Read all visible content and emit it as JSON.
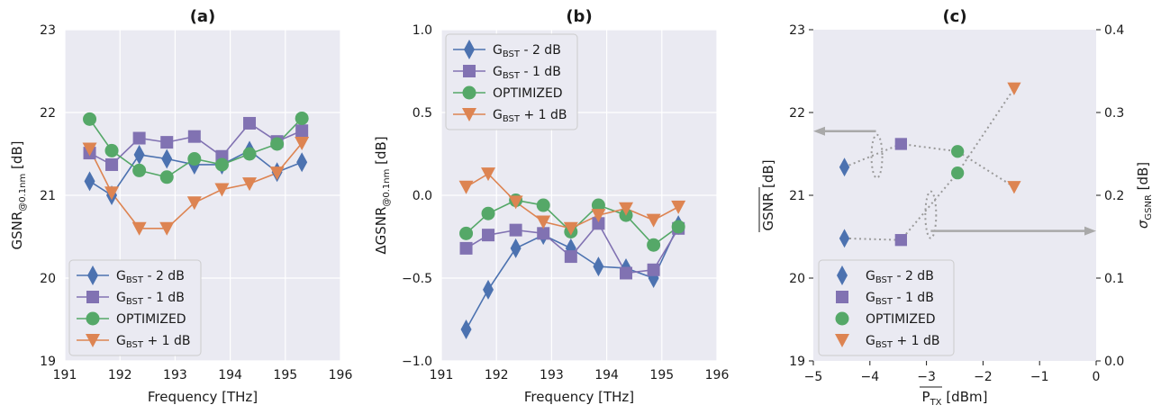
{
  "colors": {
    "gbst_minus2": "#4c72b0",
    "gbst_minus1": "#8172b2",
    "optimized": "#55a868",
    "gbst_plus1": "#dd8452",
    "panel_bg": "#eaeaf2",
    "grid": "#ffffff",
    "arrow": "#a9a9a9"
  },
  "legend": [
    {
      "key": "gbst_minus2",
      "marker": "diamond",
      "label_main": "G",
      "label_sub": "BST",
      "label_tail": " - 2 dB"
    },
    {
      "key": "gbst_minus1",
      "marker": "square",
      "label_main": "G",
      "label_sub": "BST",
      "label_tail": " - 1 dB"
    },
    {
      "key": "optimized",
      "marker": "circle",
      "label_main": "OPTIMIZED",
      "label_sub": "",
      "label_tail": ""
    },
    {
      "key": "gbst_plus1",
      "marker": "triangle-down",
      "label_main": "G",
      "label_sub": "BST",
      "label_tail": " + 1 dB"
    }
  ],
  "chart_data": [
    {
      "type": "line",
      "title": "(a)",
      "xlabel": "Frequency [THz]",
      "ylabel_main": "GSNR",
      "ylabel_sub": "@0.1nm",
      "ylabel_tail": " [dB]",
      "xlim": [
        191,
        196
      ],
      "ylim": [
        19,
        23
      ],
      "xticks": [
        "191",
        "192",
        "193",
        "194",
        "195",
        "196"
      ],
      "yticks": [
        "19",
        "20",
        "21",
        "22",
        "23"
      ],
      "grid": true,
      "legend_position": "lower-left",
      "x": [
        191.45,
        191.85,
        192.35,
        192.85,
        193.35,
        193.85,
        194.35,
        194.85,
        195.3
      ],
      "series": [
        {
          "key": "gbst_minus2",
          "name": "GBST - 2 dB",
          "values": [
            21.17,
            21.0,
            21.49,
            21.44,
            21.37,
            21.37,
            21.54,
            21.28,
            21.4
          ]
        },
        {
          "key": "gbst_minus1",
          "name": "GBST - 1 dB",
          "values": [
            21.51,
            21.37,
            21.69,
            21.64,
            21.71,
            21.47,
            21.87,
            21.65,
            21.78
          ]
        },
        {
          "key": "optimized",
          "name": "OPTIMIZED",
          "values": [
            21.92,
            21.54,
            21.3,
            21.22,
            21.44,
            21.37,
            21.5,
            21.62,
            21.93
          ]
        },
        {
          "key": "gbst_plus1",
          "name": "GBST + 1 dB",
          "values": [
            21.56,
            21.03,
            20.6,
            20.6,
            20.91,
            21.07,
            21.14,
            21.27,
            21.63
          ]
        }
      ]
    },
    {
      "type": "line",
      "title": "(b)",
      "xlabel": "Frequency [THz]",
      "ylabel_main": "ΔGSNR",
      "ylabel_sub": "@0.1nm",
      "ylabel_tail": " [dB]",
      "xlim": [
        191,
        196
      ],
      "ylim": [
        -1.0,
        1.0
      ],
      "xticks": [
        "191",
        "192",
        "193",
        "194",
        "195",
        "196"
      ],
      "yticks": [
        "−1.0",
        "−0.5",
        "0.0",
        "0.5",
        "1.0"
      ],
      "grid": true,
      "legend_position": "upper-left",
      "x": [
        191.45,
        191.85,
        192.35,
        192.85,
        193.35,
        193.85,
        194.35,
        194.85,
        195.3
      ],
      "series": [
        {
          "key": "gbst_minus2",
          "name": "GBST - 2 dB",
          "values": [
            -0.81,
            -0.57,
            -0.32,
            -0.24,
            -0.32,
            -0.43,
            -0.44,
            -0.5,
            -0.18
          ]
        },
        {
          "key": "gbst_minus1",
          "name": "GBST - 1 dB",
          "values": [
            -0.32,
            -0.24,
            -0.21,
            -0.23,
            -0.37,
            -0.17,
            -0.47,
            -0.45,
            -0.2
          ]
        },
        {
          "key": "optimized",
          "name": "OPTIMIZED",
          "values": [
            -0.23,
            -0.11,
            -0.03,
            -0.06,
            -0.22,
            -0.06,
            -0.12,
            -0.3,
            -0.19
          ]
        },
        {
          "key": "gbst_plus1",
          "name": "GBST + 1 dB",
          "values": [
            0.05,
            0.13,
            -0.04,
            -0.16,
            -0.2,
            -0.12,
            -0.08,
            -0.15,
            -0.07
          ]
        }
      ]
    },
    {
      "type": "scatter",
      "title": "(c)",
      "xlabel_main": "P",
      "xlabel_sub": "TX",
      "xlabel_tail": " [dBm]",
      "ylabel_left": "GSNR [dB]",
      "ylabel_right_main": "σ",
      "ylabel_right_sub": "GSNR",
      "ylabel_right_tail": " [dB]",
      "xlim": [
        -5,
        0
      ],
      "ylim_left": [
        19,
        23
      ],
      "ylim_right": [
        0.0,
        0.4
      ],
      "xticks": [
        "−5",
        "−4",
        "−3",
        "−2",
        "−1",
        "0"
      ],
      "yticks_left": [
        "19",
        "20",
        "21",
        "22",
        "23"
      ],
      "yticks_right": [
        "0.0",
        "0.1",
        "0.2",
        "0.3",
        "0.4"
      ],
      "grid": false,
      "legend_position": "lower-left",
      "mean_series": [
        {
          "key": "gbst_minus2",
          "name": "GBST - 2 dB",
          "x": -4.45,
          "y": 21.34
        },
        {
          "key": "gbst_minus1",
          "name": "GBST - 1 dB",
          "x": -3.45,
          "y": 21.62
        },
        {
          "key": "optimized",
          "name": "OPTIMIZED",
          "x": -2.45,
          "y": 21.53
        },
        {
          "key": "gbst_plus1",
          "name": "GBST + 1 dB",
          "x": -1.45,
          "y": 21.1
        }
      ],
      "sigma_series": [
        {
          "key": "gbst_minus2",
          "name": "GBST - 2 dB",
          "x": -4.45,
          "y": 0.148
        },
        {
          "key": "gbst_minus1",
          "name": "GBST - 1 dB",
          "x": -3.45,
          "y": 0.146
        },
        {
          "key": "optimized",
          "name": "OPTIMIZED",
          "x": -2.45,
          "y": 0.227
        },
        {
          "key": "gbst_plus1",
          "name": "GBST + 1 dB",
          "x": -1.45,
          "y": 0.329
        }
      ]
    }
  ]
}
